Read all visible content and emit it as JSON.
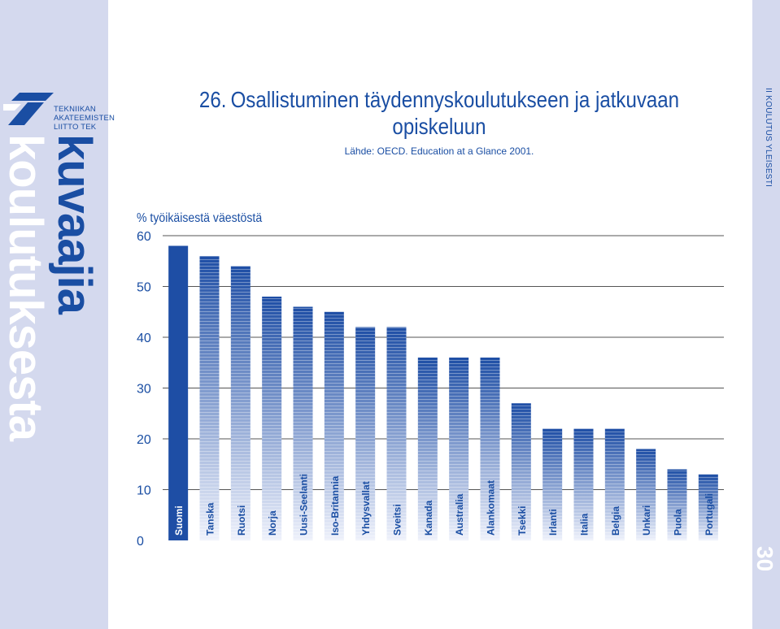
{
  "org": {
    "line1": "TEKNIIKAN",
    "line2": "AKATEEMISTEN",
    "line3": "LIITTO TEK"
  },
  "sidebar": {
    "word1": "kuvaajia",
    "word2": "koulutuksesta"
  },
  "side_label": "II KOULUTUS YLEISESTI",
  "page_number": "30",
  "colors": {
    "accent": "#1a4ea3",
    "band": "#d4d9ee",
    "bar_top": "#1e4ea5",
    "bar_bottom": "#eef1fb"
  },
  "chart_data": {
    "type": "bar",
    "title_number": "26.",
    "title": "Osallistuminen täydennyskoulutukseen ja jatkuvaan opiskeluun",
    "source": "Lähde: OECD. Education at a Glance 2001.",
    "ylabel": "% työikäisestä väestöstä",
    "ylim": [
      0,
      60
    ],
    "yticks": [
      0,
      10,
      20,
      30,
      40,
      50,
      60
    ],
    "grid": true,
    "categories": [
      "Suomi",
      "Tanska",
      "Ruotsi",
      "Norja",
      "Uusi-Seelanti",
      "Iso-Britannia",
      "Yhdysvallat",
      "Sveitsi",
      "Kanada",
      "Australia",
      "Alankomaat",
      "Tsekki",
      "Irlanti",
      "Italia",
      "Belgia",
      "Unkari",
      "Puola",
      "Portugali"
    ],
    "values": [
      58,
      56,
      54,
      48,
      46,
      45,
      42,
      42,
      36,
      36,
      36,
      27,
      22,
      22,
      22,
      18,
      14,
      13
    ]
  }
}
